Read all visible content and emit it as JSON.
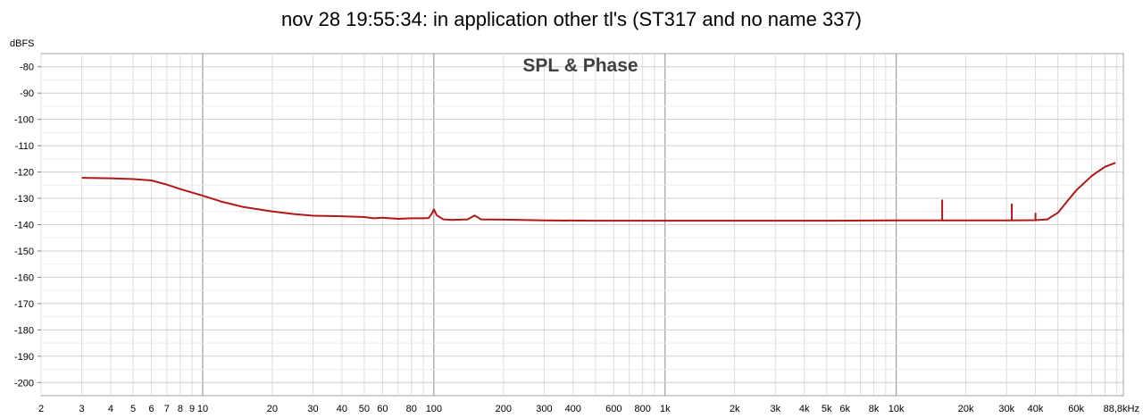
{
  "chart_data": {
    "type": "line",
    "title": "nov 28 19:55:34: in application other tl's (ST317 and no name 337)",
    "plot_label": "SPL & Phase",
    "ylabel": "dBFS",
    "xlabel": "",
    "x_scale": "log",
    "xlim": [
      2,
      96000
    ],
    "ylim": [
      -205,
      -75
    ],
    "grid": true,
    "x_ticks": [
      {
        "value": 2,
        "label": "2"
      },
      {
        "value": 3,
        "label": "3"
      },
      {
        "value": 4,
        "label": "4"
      },
      {
        "value": 5,
        "label": "5"
      },
      {
        "value": 6,
        "label": "6"
      },
      {
        "value": 7,
        "label": "7"
      },
      {
        "value": 8,
        "label": "8"
      },
      {
        "value": 9,
        "label": "9"
      },
      {
        "value": 10,
        "label": "10"
      },
      {
        "value": 20,
        "label": "20"
      },
      {
        "value": 30,
        "label": "30"
      },
      {
        "value": 40,
        "label": "40"
      },
      {
        "value": 50,
        "label": "50"
      },
      {
        "value": 60,
        "label": "60"
      },
      {
        "value": 80,
        "label": "80"
      },
      {
        "value": 100,
        "label": "100"
      },
      {
        "value": 200,
        "label": "200"
      },
      {
        "value": 300,
        "label": "300"
      },
      {
        "value": 400,
        "label": "400"
      },
      {
        "value": 600,
        "label": "600"
      },
      {
        "value": 800,
        "label": "800"
      },
      {
        "value": 1000,
        "label": "1k"
      },
      {
        "value": 2000,
        "label": "2k"
      },
      {
        "value": 3000,
        "label": "3k"
      },
      {
        "value": 4000,
        "label": "4k"
      },
      {
        "value": 5000,
        "label": "5k"
      },
      {
        "value": 6000,
        "label": "6k"
      },
      {
        "value": 8000,
        "label": "8k"
      },
      {
        "value": 10000,
        "label": "10k"
      },
      {
        "value": 20000,
        "label": "20k"
      },
      {
        "value": 30000,
        "label": "30k"
      },
      {
        "value": 40000,
        "label": "40k"
      },
      {
        "value": 60000,
        "label": "60k"
      },
      {
        "value": 88800,
        "label": "88,8kHz"
      }
    ],
    "y_ticks": [
      {
        "value": -80,
        "label": "-80"
      },
      {
        "value": -90,
        "label": "-90"
      },
      {
        "value": -100,
        "label": "-100"
      },
      {
        "value": -110,
        "label": "-110"
      },
      {
        "value": -120,
        "label": "-120"
      },
      {
        "value": -130,
        "label": "-130"
      },
      {
        "value": -140,
        "label": "-140"
      },
      {
        "value": -150,
        "label": "-150"
      },
      {
        "value": -160,
        "label": "-160"
      },
      {
        "value": -170,
        "label": "-170"
      },
      {
        "value": -180,
        "label": "-180"
      },
      {
        "value": -190,
        "label": "-190"
      },
      {
        "value": -200,
        "label": "-200"
      }
    ],
    "series": [
      {
        "color": "#b01818",
        "x": [
          3,
          4,
          5,
          6,
          7,
          8,
          10,
          12,
          15,
          20,
          25,
          30,
          40,
          50,
          55,
          60,
          70,
          80,
          90,
          95,
          98,
          100,
          103,
          110,
          120,
          140,
          150,
          160,
          200,
          300,
          500,
          1000,
          2000,
          5000,
          10000,
          15000,
          20000,
          30000,
          40000,
          45000,
          50000,
          55000,
          60000,
          70000,
          80000,
          88800
        ],
        "y": [
          -122.2,
          -122.4,
          -122.7,
          -123.2,
          -124.8,
          -126.5,
          -129.0,
          -131.2,
          -133.3,
          -135.0,
          -136.0,
          -136.6,
          -136.8,
          -137.1,
          -137.6,
          -137.4,
          -137.8,
          -137.6,
          -137.6,
          -137.5,
          -135.8,
          -134.2,
          -136.5,
          -138.0,
          -138.2,
          -138.0,
          -136.5,
          -138.0,
          -138.1,
          -138.4,
          -138.5,
          -138.5,
          -138.5,
          -138.5,
          -138.4,
          -138.4,
          -138.4,
          -138.4,
          -138.3,
          -138.0,
          -135.5,
          -131.0,
          -127.0,
          -121.5,
          -118.0,
          -116.5
        ]
      }
    ],
    "spikes": [
      {
        "x": 15800,
        "y": -130.5
      },
      {
        "x": 31600,
        "y": -132.0
      },
      {
        "x": 40000,
        "y": -135.5
      }
    ]
  }
}
